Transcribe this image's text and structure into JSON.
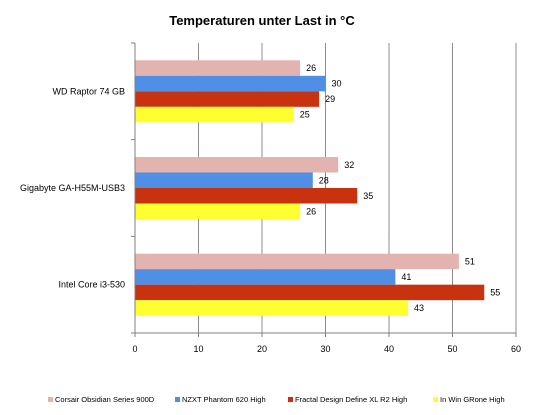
{
  "chart_data": {
    "type": "bar",
    "orientation": "horizontal",
    "title": "Temperaturen unter Last in °C",
    "categories": [
      "WD Raptor 74 GB",
      "Gigabyte GA-H55M-USB3",
      "Intel Core i3-530"
    ],
    "series": [
      {
        "name": "Corsair Obsidian Series 900D",
        "color": "#e3b3b0",
        "values": [
          26,
          32,
          51
        ]
      },
      {
        "name": "NZXT Phantom 620 High",
        "color": "#4f8fe6",
        "values": [
          30,
          28,
          41
        ]
      },
      {
        "name": "Fractal Design Define XL R2 High",
        "color": "#c8320f",
        "values": [
          29,
          35,
          55
        ]
      },
      {
        "name": "In Win GRone High",
        "color": "#ffff30",
        "values": [
          25,
          26,
          43
        ]
      }
    ],
    "xlim": [
      0,
      60
    ],
    "xticks": [
      0,
      10,
      20,
      30,
      40,
      50,
      60
    ],
    "grid": true,
    "legend": "bottom"
  }
}
